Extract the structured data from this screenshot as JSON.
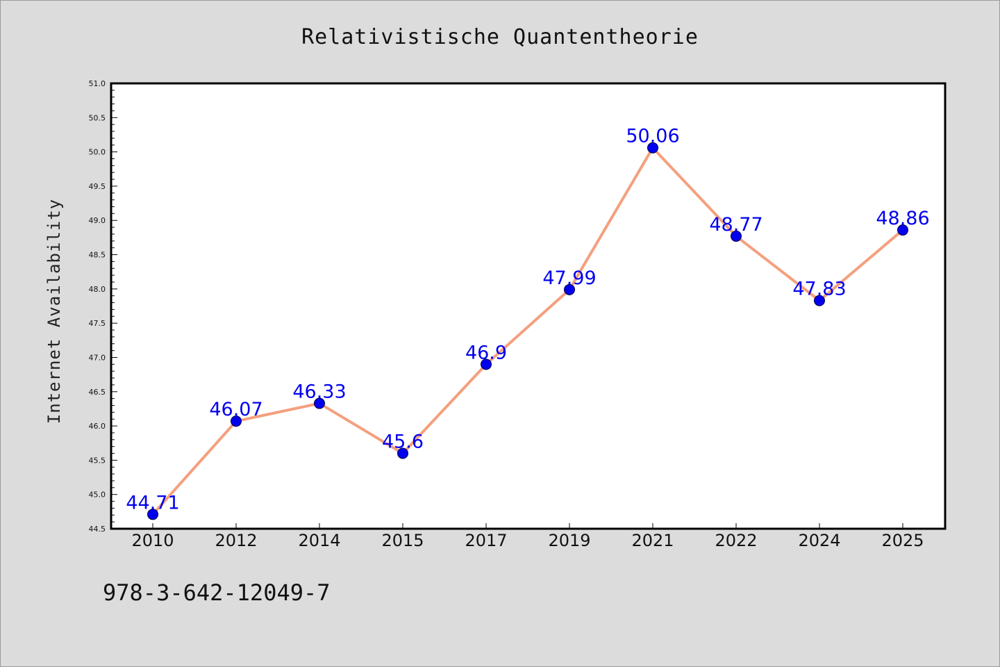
{
  "chart_data": {
    "type": "line",
    "title": "Relativistische Quantentheorie",
    "xlabel": "",
    "ylabel": "Internet Availability",
    "categories": [
      "2010",
      "2012",
      "2014",
      "2015",
      "2017",
      "2019",
      "2021",
      "2022",
      "2024",
      "2025"
    ],
    "values": [
      44.71,
      46.07,
      46.33,
      45.6,
      46.9,
      47.99,
      50.06,
      48.77,
      47.83,
      48.86
    ],
    "data_labels": [
      "44.71",
      "46.07",
      "46.33",
      "45.6",
      "46.9",
      "47.99",
      "50.06",
      "48.77",
      "47.83",
      "48.86"
    ],
    "ylim": [
      44.5,
      51.0
    ],
    "yticks": [
      "44.5",
      "45.0",
      "45.5",
      "46.0",
      "46.5",
      "47.0",
      "47.5",
      "48.0",
      "48.5",
      "49.0",
      "49.5",
      "50.0",
      "50.5",
      "51.0"
    ],
    "grid": false,
    "line_color": "#f4a07e",
    "marker_color": "#0000ee",
    "label_color": "#0000ee",
    "footer_text": "978-3-642-12049-7"
  }
}
